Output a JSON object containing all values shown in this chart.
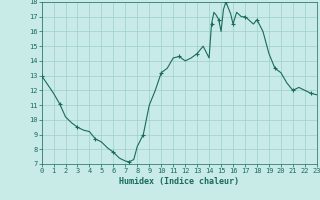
{
  "x_data": [
    0,
    0.5,
    1,
    1.5,
    2,
    2.5,
    3,
    3.5,
    4,
    4.5,
    5,
    5.5,
    6,
    6.5,
    7,
    7.3,
    7.7,
    8,
    8.5,
    9,
    9.5,
    10,
    10.5,
    11,
    11.5,
    12,
    12.5,
    13,
    13.5,
    14,
    14.2,
    14.4,
    14.6,
    14.8,
    15.0,
    15.2,
    15.4,
    15.6,
    15.8,
    16.0,
    16.3,
    16.7,
    17,
    17.3,
    17.7,
    18,
    18.5,
    19,
    19.5,
    20,
    20.5,
    21,
    21.5,
    22,
    22.5,
    23
  ],
  "y_data": [
    13.0,
    12.4,
    11.8,
    11.1,
    10.2,
    9.8,
    9.5,
    9.3,
    9.2,
    8.7,
    8.5,
    8.1,
    7.8,
    7.4,
    7.2,
    7.15,
    7.3,
    8.2,
    9.0,
    11.0,
    12.0,
    13.2,
    13.5,
    14.2,
    14.3,
    14.0,
    14.2,
    14.5,
    15.0,
    14.2,
    16.5,
    17.3,
    17.1,
    16.8,
    16.0,
    17.5,
    18.0,
    17.6,
    17.2,
    16.5,
    17.3,
    17.0,
    17.0,
    16.8,
    16.5,
    16.8,
    16.0,
    14.5,
    13.5,
    13.2,
    12.5,
    12.0,
    12.2,
    12.0,
    11.8,
    11.7
  ],
  "line_color": "#1a6b5a",
  "bg_color": "#c8ebe8",
  "grid_color": "#9ecfca",
  "xlabel": "Humidex (Indice chaleur)",
  "ylim": [
    7,
    18
  ],
  "xlim": [
    0,
    23
  ],
  "yticks": [
    7,
    8,
    9,
    10,
    11,
    12,
    13,
    14,
    15,
    16,
    17,
    18
  ],
  "xticks": [
    0,
    1,
    2,
    3,
    4,
    5,
    6,
    7,
    8,
    9,
    10,
    11,
    12,
    13,
    14,
    15,
    16,
    17,
    18,
    19,
    20,
    21,
    22,
    23
  ],
  "linewidth": 0.8,
  "markersize": 3.0
}
